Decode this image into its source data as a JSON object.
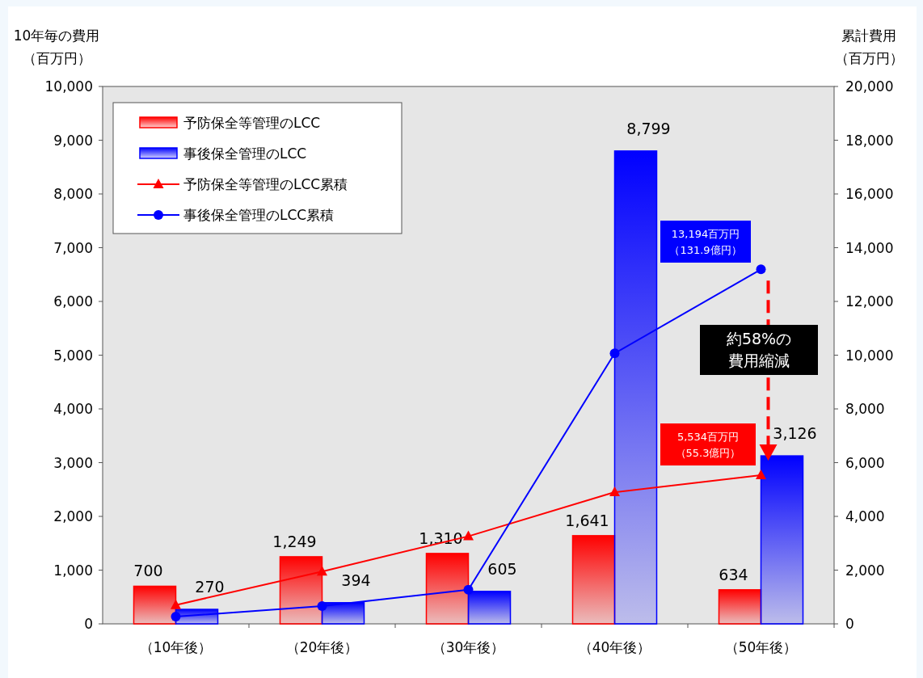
{
  "chart_data": {
    "type": "bar",
    "ylabel": "10年毎の費用（百万円）",
    "y2label": "累計費用（百万円）",
    "categories": [
      "（10年後）",
      "（20年後）",
      "（30年後）",
      "（40年後）",
      "（50年後）"
    ],
    "series": [
      {
        "name": "予防保全等管理のLCC",
        "color": "#ff0000",
        "values": [
          700,
          1249,
          1310,
          1641,
          634
        ],
        "value_labels": [
          "700",
          "1,249",
          "1,310",
          "1,641",
          "634"
        ]
      },
      {
        "name": "事後保全管理のLCC",
        "color": "#0000ff",
        "values": [
          270,
          394,
          605,
          8799,
          3126
        ],
        "value_labels": [
          "270",
          "394",
          "605",
          "8,799",
          "3,126"
        ]
      },
      {
        "name": "予防保全等管理のLCC累積",
        "type": "line",
        "axis": "y2",
        "color": "#ff0000",
        "marker": "triangle",
        "values": [
          700,
          1950,
          3260,
          4900,
          5534
        ]
      },
      {
        "name": "事後保全管理のLCC累積",
        "type": "line",
        "axis": "y2",
        "color": "#0000ff",
        "marker": "circle",
        "values": [
          270,
          660,
          1270,
          10070,
          13194
        ]
      }
    ],
    "ylim": [
      0,
      10000
    ],
    "yticks": [
      0,
      {
        "value": 1000,
        "label": "1,000"
      },
      {
        "value": 2000,
        "label": "2,000"
      },
      {
        "value": 3000,
        "label": "3,000"
      },
      {
        "value": 4000,
        "label": "4,000"
      },
      {
        "value": 5000,
        "label": "5,000"
      },
      {
        "value": 6000,
        "label": "6,000"
      },
      {
        "value": 7000,
        "label": "7,000"
      },
      {
        "value": 8000,
        "label": "8,000"
      },
      {
        "value": 9000,
        "label": "9,000"
      },
      {
        "value": 10000,
        "label": "10,000"
      }
    ],
    "y2lim": [
      0,
      20000
    ],
    "y2ticks": [
      0,
      {
        "value": 2000,
        "label": "2,000"
      },
      {
        "value": 4000,
        "label": "4,000"
      },
      {
        "value": 6000,
        "label": "6,000"
      },
      {
        "value": 8000,
        "label": "8,000"
      },
      {
        "value": 10000,
        "label": "10,000"
      },
      {
        "value": 12000,
        "label": "12,000"
      },
      {
        "value": 14000,
        "label": "14,000"
      },
      {
        "value": 16000,
        "label": "16,000"
      },
      {
        "value": 18000,
        "label": "18,000"
      },
      {
        "value": 20000,
        "label": "20,000"
      }
    ],
    "annotations": [
      "13,194百万円（131.9億円）",
      "5,534百万円（55.3億円）",
      "約58%の費用縮減"
    ],
    "legend": "top left",
    "grid": false
  }
}
